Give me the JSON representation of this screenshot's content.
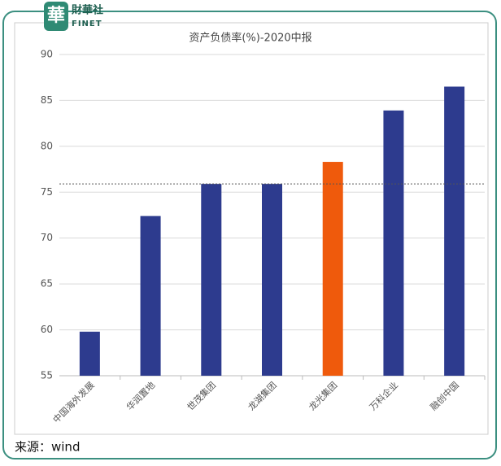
{
  "logo": {
    "mark": "華",
    "name": "財華社",
    "sub": "FINET"
  },
  "source": "来源：wind",
  "chart_data": {
    "type": "bar",
    "title": "资产负债率(%)-2020中报",
    "categories": [
      "中国海外发展",
      "华润置地",
      "世茂集团",
      "龙湖集团",
      "龙光集团",
      "万科企业",
      "融创中国"
    ],
    "values": [
      59.8,
      72.4,
      75.9,
      75.9,
      78.3,
      83.9,
      86.5
    ],
    "colors": [
      "#2d3b8e",
      "#2d3b8e",
      "#2d3b8e",
      "#2d3b8e",
      "#ef5a0c",
      "#2d3b8e",
      "#2d3b8e"
    ],
    "reference_line": 75.9,
    "ylim": [
      55,
      90
    ],
    "yticks": [
      55,
      60,
      65,
      70,
      75,
      80,
      85,
      90
    ],
    "grid": true
  }
}
